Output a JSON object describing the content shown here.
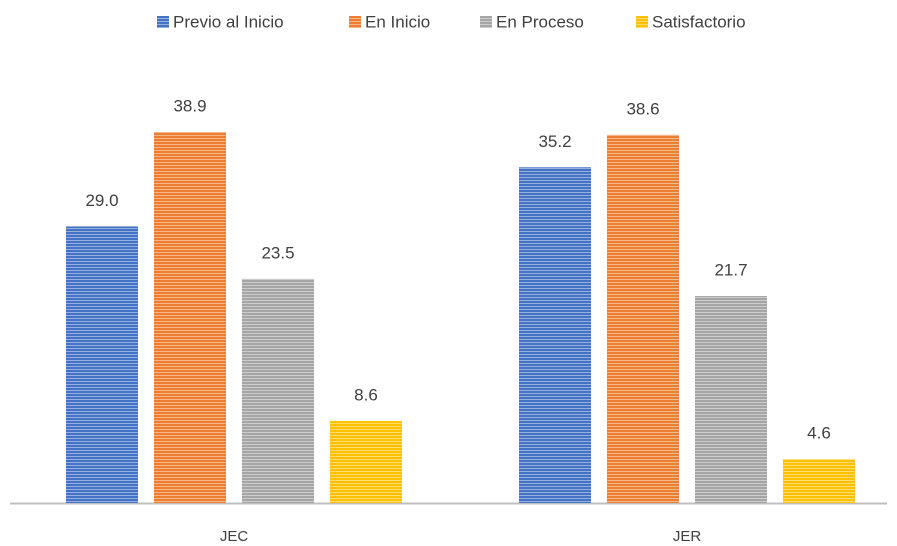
{
  "chart_data": {
    "type": "bar",
    "categories": [
      "JEC",
      "JER"
    ],
    "series": [
      {
        "name": "Previo al Inicio",
        "color": "#4472c4",
        "values": [
          29.0,
          35.2
        ],
        "value_labels": [
          "29.0",
          "35.2"
        ]
      },
      {
        "name": "En Inicio",
        "color": "#ed7d31",
        "values": [
          38.9,
          38.6
        ],
        "value_labels": [
          "38.9",
          "38.6"
        ]
      },
      {
        "name": "En Proceso",
        "color": "#a5a5a5",
        "values": [
          23.5,
          21.7
        ],
        "value_labels": [
          "23.5",
          "21.7"
        ]
      },
      {
        "name": "Satisfactorio",
        "color": "#ffc000",
        "values": [
          8.6,
          4.6
        ],
        "value_labels": [
          "8.6",
          "4.6"
        ]
      }
    ],
    "legend": "top"
  }
}
